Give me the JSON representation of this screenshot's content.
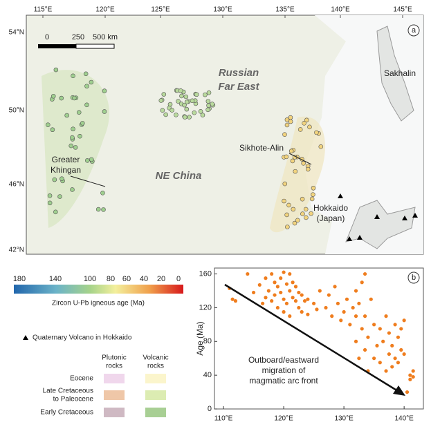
{
  "map": {
    "panel_label": "a",
    "lon_ticks": [
      "115°E",
      "120°E",
      "125°E",
      "130°E",
      "135°E",
      "140°E",
      "145°E"
    ],
    "lat_ticks": [
      "54°N",
      "50°N",
      "46°N",
      "42°N"
    ],
    "scale_bar": [
      "0",
      "250",
      "500 km"
    ],
    "labels": {
      "far_east": [
        "Russian",
        "Far East"
      ],
      "ne_china": "NE China",
      "khingan": [
        "Greater",
        "Khingan"
      ],
      "sikhote": "Sikhote-Alin",
      "sakhalin": "Sakhalin",
      "hokkaido": [
        "Hokkaido",
        "(Japan)"
      ]
    }
  },
  "legend": {
    "colorbar_ticks": [
      180,
      140,
      100,
      80,
      60,
      40,
      20,
      0
    ],
    "colorbar_title": "Zircon U-Pb igneous age (Ma)",
    "volcano": "Quaternary Volcano in Hokkaido",
    "headers": [
      [
        "Plutonic",
        "rocks"
      ],
      [
        "Volcanic",
        "rocks"
      ]
    ],
    "rows": [
      [
        "Eocene"
      ],
      [
        "Late Cretaceous",
        "to Paleocene"
      ],
      [
        "Early Cretaceous"
      ]
    ]
  },
  "chart_data": {
    "type": "scatter",
    "panel_label": "b",
    "y_label": "Age (Ma)",
    "annotation": [
      "Outboard/eastward",
      "migration of",
      "magmatic arc front"
    ],
    "xlim": [
      108.5,
      143.2
    ],
    "ylim": [
      0,
      167
    ],
    "xticks": [
      {
        "value": 110,
        "label": "110°E"
      },
      {
        "value": 120,
        "label": "120°E"
      },
      {
        "value": 130,
        "label": "130°E"
      },
      {
        "value": 140,
        "label": "140°E"
      }
    ],
    "yticks": [
      0,
      40,
      80,
      120,
      160
    ],
    "series": [
      {
        "color": "#ef7d1e",
        "x": [
          111,
          111.5,
          112,
          114,
          115,
          116,
          116.5,
          117,
          117,
          117.5,
          118,
          118,
          118.5,
          118.5,
          119,
          119,
          119.5,
          119.5,
          120,
          120,
          120,
          120.5,
          120.5,
          121,
          121,
          121,
          121.5,
          121.5,
          122,
          122,
          122.5,
          122.5,
          123,
          123,
          123.5,
          124,
          124,
          125,
          125.5,
          126,
          127,
          127.5,
          128,
          128.5,
          129,
          129.5,
          130,
          130.5,
          131,
          131.5,
          132,
          132,
          132.5,
          132.5,
          133,
          133,
          133.5,
          133.5,
          134,
          134,
          134.5,
          135,
          135,
          135.5,
          136,
          136,
          136.5,
          137,
          137,
          137.5,
          137.5,
          138,
          138,
          138.5,
          138.5,
          139,
          139,
          139.5,
          139.5,
          140,
          140,
          141,
          141,
          141.5,
          141.5,
          140.5,
          133.5,
          132
        ],
        "values": [
          143,
          130,
          128,
          160,
          138,
          147,
          125,
          155,
          132,
          140,
          160,
          128,
          150,
          135,
          145,
          120,
          155,
          138,
          162,
          130,
          115,
          148,
          125,
          140,
          160,
          110,
          132,
          150,
          128,
          145,
          120,
          138,
          135,
          115,
          128,
          130,
          112,
          125,
          118,
          140,
          120,
          135,
          110,
          145,
          125,
          105,
          115,
          130,
          100,
          120,
          140,
          80,
          125,
          60,
          150,
          95,
          70,
          110,
          45,
          85,
          130,
          60,
          100,
          75,
          55,
          95,
          80,
          45,
          110,
          65,
          90,
          50,
          75,
          60,
          100,
          55,
          85,
          70,
          95,
          65,
          105,
          40,
          35,
          45,
          38,
          20,
          160,
          110
        ]
      }
    ]
  }
}
